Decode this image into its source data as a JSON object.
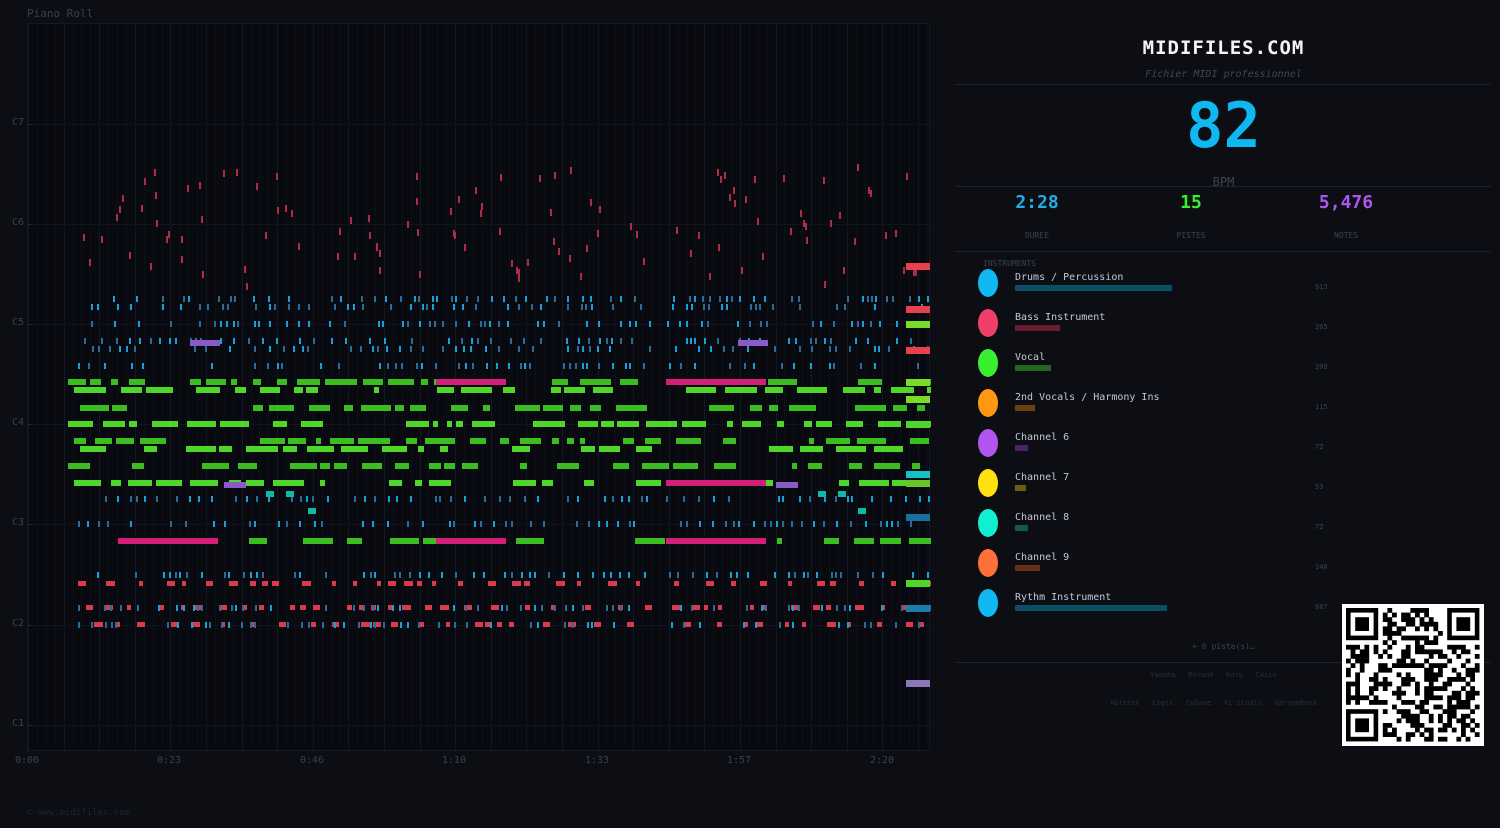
{
  "roll": {
    "title": "Piano Roll",
    "y_labels": [
      "C7",
      "C6",
      "C5",
      "C4",
      "C3",
      "C2",
      "C1"
    ],
    "x_labels": [
      "0:00",
      "0:23",
      "0:46",
      "1:10",
      "1:33",
      "1:57",
      "2:20"
    ],
    "footer": "© www.midifiles.com"
  },
  "panel": {
    "brand": "MIDIFILES.COM",
    "tagline": "Fichier MIDI professionnel",
    "bpm": "82",
    "bpm_label": "BPM",
    "stats": [
      {
        "value": "2:28",
        "label": "DUREE",
        "color": "#1eaee8"
      },
      {
        "value": "15",
        "label": "PISTES",
        "color": "#39ee2e"
      },
      {
        "value": "5,476",
        "label": "NOTES",
        "color": "#b055ee"
      }
    ],
    "instruments_title": "INSTRUMENTS",
    "instruments": [
      {
        "name": "Drums / Percussion",
        "count": "913",
        "color": "#0fb8f0",
        "bar": "#0b4e68"
      },
      {
        "name": "Bass Instrument",
        "count": "265",
        "color": "#f0406a",
        "bar": "#6a1c30"
      },
      {
        "name": "Vocal",
        "count": "209",
        "color": "#39ee2e",
        "bar": "#1e6a1a"
      },
      {
        "name": "2nd Vocals / Harmony Ins",
        "count": "115",
        "color": "#ff9810",
        "bar": "#6a4010"
      },
      {
        "name": "Channel 6",
        "count": "72",
        "color": "#b055ee",
        "bar": "#4a2466"
      },
      {
        "name": "Channel 7",
        "count": "59",
        "color": "#ffe010",
        "bar": "#6a5e0a"
      },
      {
        "name": "Channel 8",
        "count": "72",
        "color": "#10f0d0",
        "bar": "#0c5a50"
      },
      {
        "name": "Channel 9",
        "count": "140",
        "color": "#ff7038",
        "bar": "#6a2e1a"
      },
      {
        "name": "Rythm Instrument",
        "count": "887",
        "color": "#0fb8f0",
        "bar": "#0b4e68"
      }
    ],
    "more": "+ 6 piste(s)…",
    "brands_line1": "Yamaha · Roland · Korg · Casio",
    "brands_line2": "Ableton · Logic · Cubase · FL Studio · GarageBand"
  }
}
